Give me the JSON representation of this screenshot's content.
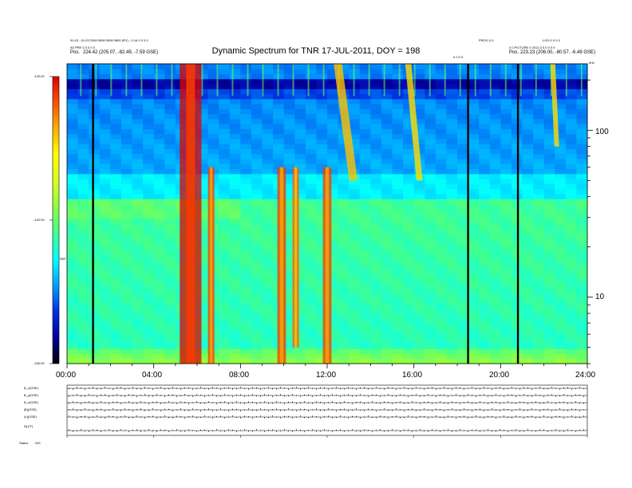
{
  "header": {
    "title": "Dynamic Spectrum for TNR 17-JUL-2011, DOY = 198",
    "left_line1": "01.03 - 01.03 2008 0908 0908 0800 (RY) - 0.16 0 0 0 0",
    "left_line2": "A0 PRE 0.3 0 0 0",
    "left_pos_label": "Pos.",
    "left_pos_value": "224.42 (205.07, -82.49, -7.59 GSE)",
    "right_line1": "PROG 0.0",
    "right_line1b": "LOG 0 0 0 0",
    "right_line2": "0 0 PICTURE 0 2011-0 0 0 0 0 0",
    "right_pos_label": "Pos.",
    "right_pos_value": "223.23 (206.00, -80.57, -6.49 GSE)",
    "mid_label": "0 0 0 0"
  },
  "colorbar": {
    "ticks": [
      "-125.00",
      "-140.00",
      "-155.00"
    ],
    "axis_label": "TNR"
  },
  "right_axis": {
    "ticks": [
      "100",
      "10"
    ],
    "top_label": "kHz"
  },
  "x_axis": {
    "ticks": [
      "00:00",
      "04:00",
      "08:00",
      "12:00",
      "16:00",
      "20:00",
      "24:00"
    ]
  },
  "bottom": {
    "row_labels": [
      "B_x(GSE)",
      "B_y(GSE)",
      "B_z(GSE)",
      "|B|(GSE)",
      "|V|(GSE)",
      "N(1/T)"
    ],
    "footer_left": "Status",
    "footer_right": "N/S"
  },
  "colors": {
    "cmap": [
      "#000000",
      "#0000a0",
      "#0030e0",
      "#00a0ff",
      "#00ffff",
      "#40ff90",
      "#90ff40",
      "#d8ff20",
      "#ffff00",
      "#ffb000",
      "#ff5000",
      "#e00000"
    ]
  },
  "chart_data": {
    "type": "heatmap",
    "title": "Dynamic Spectrum for TNR 17-JUL-2011, DOY = 198",
    "x_range_hours": [
      0,
      24
    ],
    "x_ticks": [
      "00:00",
      "04:00",
      "08:00",
      "12:00",
      "16:00",
      "20:00",
      "24:00"
    ],
    "y_scale": "log",
    "y_range_khz": [
      4,
      250
    ],
    "y_ticks": [
      "100",
      "10"
    ],
    "y_unit": "kHz",
    "colorbar_range": [
      -155,
      -125
    ],
    "colorbar_ticks": [
      "-125.00",
      "-140.00",
      "-155.00"
    ],
    "data_gaps_hours": [
      1.2,
      18.5,
      20.8
    ],
    "bursts": [
      {
        "start_h": 5.2,
        "end_h": 6.2,
        "top_khz": 250,
        "bottom_khz": 4,
        "level": -127
      },
      {
        "start_h": 6.5,
        "end_h": 6.8,
        "top_khz": 60,
        "bottom_khz": 4,
        "level": -130
      },
      {
        "start_h": 9.7,
        "end_h": 10.1,
        "top_khz": 60,
        "bottom_khz": 4,
        "level": -130
      },
      {
        "start_h": 10.4,
        "end_h": 10.7,
        "top_khz": 60,
        "bottom_khz": 5,
        "level": -131
      },
      {
        "start_h": 11.8,
        "end_h": 12.2,
        "top_khz": 60,
        "bottom_khz": 4,
        "level": -130
      }
    ],
    "drift_bursts": [
      {
        "start_h": 12.3,
        "end_h": 13.4,
        "top_khz": 250,
        "bottom_khz": 50,
        "level": -131
      },
      {
        "start_h": 15.6,
        "end_h": 16.4,
        "top_khz": 250,
        "bottom_khz": 50,
        "level": -132
      },
      {
        "start_h": 22.3,
        "end_h": 22.7,
        "top_khz": 250,
        "bottom_khz": 80,
        "level": -132
      }
    ]
  }
}
